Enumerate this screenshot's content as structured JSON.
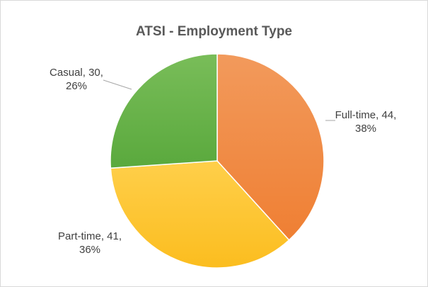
{
  "chart_data": {
    "type": "pie",
    "title": "ATSI - Employment Type",
    "slices": [
      {
        "label": "Full-time",
        "value": 44,
        "percent": "38%",
        "color": "#ef7f33",
        "color_light": "#f29a5c"
      },
      {
        "label": "Part-time",
        "value": 41,
        "percent": "36%",
        "color": "#fbbd1f",
        "color_light": "#ffcf4a"
      },
      {
        "label": "Casual",
        "value": 30,
        "percent": "26%",
        "color": "#5aa93d",
        "color_light": "#79bd59"
      }
    ],
    "data_labels": [
      {
        "line1": "Full-time, 44,",
        "line2": "38%"
      },
      {
        "line1": "Part-time, 41,",
        "line2": "36%"
      },
      {
        "line1": "Casual, 30,",
        "line2": "26%"
      }
    ],
    "legend": "none"
  }
}
